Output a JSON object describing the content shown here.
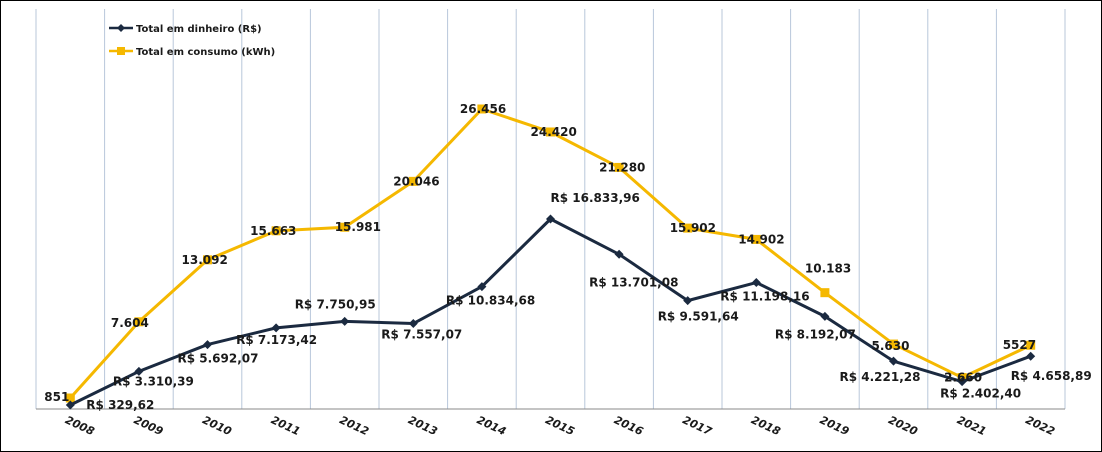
{
  "chart_data": {
    "type": "line",
    "title": "",
    "xlabel": "",
    "ylabel": "",
    "categories": [
      "2008",
      "2009",
      "2010",
      "2011",
      "2012",
      "2013",
      "2014",
      "2015",
      "2016",
      "2017",
      "2018",
      "2019",
      "2020",
      "2021",
      "2022"
    ],
    "grid": "vertical",
    "legend_position": "top-left",
    "series": [
      {
        "name": "Total em dinheiro (R$)",
        "color": "#1b2a40",
        "marker": "diamond",
        "values": [
          329.62,
          3310.39,
          5692.07,
          7173.42,
          7750.95,
          7557.07,
          10834.68,
          16833.96,
          13701.08,
          9591.64,
          11198.16,
          8192.07,
          4221.28,
          2402.4,
          4658.89
        ],
        "labels": [
          "R$ 329,62",
          "R$ 3.310,39",
          "R$ 5.692,07",
          "R$ 7.173,42",
          "R$ 7.750,95",
          "R$ 7.557,07",
          "R$ 10.834,68",
          "R$ 16.833,96",
          "R$ 13.701,08",
          "R$ 9.591,64",
          "R$ 11.198,16",
          "R$ 8.192,07",
          "R$ 4.221,28",
          "R$ 2.402,40",
          "R$ 4.658,89"
        ]
      },
      {
        "name": "Total em consumo (kWh)",
        "color": "#f5b800",
        "marker": "square",
        "values": [
          851,
          7604,
          13092,
          15663,
          15981,
          20046,
          26456,
          24420,
          21280,
          15902,
          14902,
          10183,
          5630,
          2660,
          5527
        ],
        "labels": [
          "851",
          "7.604",
          "13.092",
          "15.663",
          "15.981",
          "20.046",
          "26.456",
          "24.420",
          "21.280",
          "15.902",
          "14.902",
          "10.183",
          "5.630",
          "2.660",
          "5527"
        ]
      }
    ]
  }
}
